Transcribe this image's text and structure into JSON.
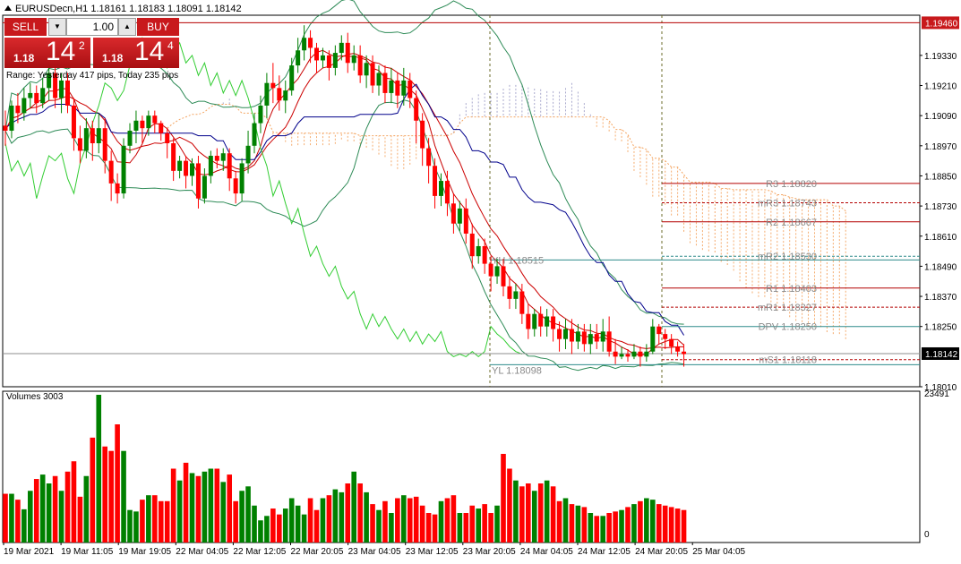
{
  "header": {
    "symbol_line": "EURUSDecn,H1  1.18161 1.18183 1.18091 1.18142",
    "range_text": "Range: Yesterday 417 pips, Today 235 pips"
  },
  "trade_panel": {
    "sell_label": "SELL",
    "buy_label": "BUY",
    "lot_value": "1.00",
    "bid": {
      "prefix": "1.18",
      "big": "14",
      "sup": "2"
    },
    "ask": {
      "prefix": "1.18",
      "big": "14",
      "sup": "4"
    }
  },
  "volumes_title": "Volumes 3003",
  "colors": {
    "bull": "#008000",
    "bear": "#ff0000",
    "ma_fast": "#c80000",
    "ma_mid": "#cc0000",
    "kijun": "#00008b",
    "bands": "#2e8b57",
    "chikou": "#32cd32",
    "cloud": "#f4a460",
    "cloud_top": "#a0a0c8",
    "pivot": "#b40000",
    "pivot_teal": "#2e8b8b",
    "badge_red": "#c8191c"
  },
  "chart_data": [
    {
      "type": "candlestick",
      "title": "EURUSDecn,H1",
      "ylim": [
        1.1801,
        1.1949
      ],
      "y_ticks": [
        "1.19460",
        "1.19330",
        "1.19210",
        "1.19090",
        "1.18970",
        "1.18850",
        "1.18730",
        "1.18610",
        "1.18490",
        "1.18370",
        "1.18250",
        "1.18142",
        "1.18010"
      ],
      "x_tick_labels": [
        "19 Mar 2021",
        "19 Mar 11:05",
        "19 Mar 19:05",
        "22 Mar 04:05",
        "22 Mar 12:05",
        "22 Mar 20:05",
        "23 Mar 04:05",
        "23 Mar 12:05",
        "23 Mar 20:05",
        "24 Mar 04:05",
        "24 Mar 12:05",
        "24 Mar 20:05",
        "25 Mar 04:05"
      ],
      "current_price": {
        "label": "1.18142",
        "value": 1.18142
      },
      "high_marker": {
        "label": "1.19460",
        "value": 1.1946
      },
      "candles": [
        [
          1.1905,
          1.1903,
          1.1911,
          1.1897
        ],
        [
          1.1903,
          1.1913,
          1.1915,
          1.19
        ],
        [
          1.1913,
          1.191,
          1.1918,
          1.1906
        ],
        [
          1.191,
          1.1916,
          1.192,
          1.1907
        ],
        [
          1.1916,
          1.1918,
          1.1922,
          1.1912
        ],
        [
          1.1918,
          1.1914,
          1.1921,
          1.191
        ],
        [
          1.1914,
          1.192,
          1.1924,
          1.1912
        ],
        [
          1.192,
          1.1926,
          1.1928,
          1.1915
        ],
        [
          1.1926,
          1.1916,
          1.193,
          1.1912
        ],
        [
          1.1916,
          1.1923,
          1.1926,
          1.191
        ],
        [
          1.1923,
          1.1913,
          1.1926,
          1.191
        ],
        [
          1.1913,
          1.19,
          1.1916,
          1.1895
        ],
        [
          1.19,
          1.1895,
          1.1905,
          1.189
        ],
        [
          1.1895,
          1.1904,
          1.1908,
          1.1892
        ],
        [
          1.1904,
          1.1898,
          1.1907,
          1.1891
        ],
        [
          1.1898,
          1.1904,
          1.191,
          1.1894
        ],
        [
          1.1904,
          1.1891,
          1.1908,
          1.1886
        ],
        [
          1.1891,
          1.1882,
          1.1895,
          1.1875
        ],
        [
          1.1882,
          1.1878,
          1.1886,
          1.1874
        ],
        [
          1.1878,
          1.1897,
          1.19,
          1.1876
        ],
        [
          1.1897,
          1.1903,
          1.1906,
          1.1894
        ],
        [
          1.1903,
          1.1907,
          1.1911,
          1.1898
        ],
        [
          1.1907,
          1.1904,
          1.1909,
          1.1898
        ],
        [
          1.1904,
          1.1909,
          1.1911,
          1.1901
        ],
        [
          1.1909,
          1.1906,
          1.1911,
          1.1902
        ],
        [
          1.1906,
          1.1902,
          1.1907,
          1.1899
        ],
        [
          1.1902,
          1.1898,
          1.1904,
          1.1892
        ],
        [
          1.1898,
          1.1887,
          1.19,
          1.1883
        ],
        [
          1.1887,
          1.1891,
          1.1893,
          1.1884
        ],
        [
          1.1891,
          1.1885,
          1.1893,
          1.188
        ],
        [
          1.1885,
          1.189,
          1.1892,
          1.1881
        ],
        [
          1.189,
          1.1876,
          1.1893,
          1.1872
        ],
        [
          1.1876,
          1.1885,
          1.1888,
          1.1874
        ],
        [
          1.1885,
          1.1893,
          1.1895,
          1.1882
        ],
        [
          1.1893,
          1.1891,
          1.1896,
          1.1888
        ],
        [
          1.1891,
          1.1894,
          1.1896,
          1.1887
        ],
        [
          1.1894,
          1.1884,
          1.1896,
          1.1879
        ],
        [
          1.1884,
          1.1878,
          1.1887,
          1.1874
        ],
        [
          1.1878,
          1.189,
          1.1892,
          1.1875
        ],
        [
          1.189,
          1.1897,
          1.1903,
          1.1886
        ],
        [
          1.1897,
          1.1906,
          1.191,
          1.1894
        ],
        [
          1.1906,
          1.1913,
          1.1917,
          1.1902
        ],
        [
          1.1913,
          1.1922,
          1.1926,
          1.1908
        ],
        [
          1.1922,
          1.192,
          1.193,
          1.1914
        ],
        [
          1.192,
          1.1915,
          1.1925,
          1.1911
        ],
        [
          1.1915,
          1.1919,
          1.1923,
          1.191
        ],
        [
          1.1919,
          1.1929,
          1.1932,
          1.1917
        ],
        [
          1.1929,
          1.1935,
          1.194,
          1.1926
        ],
        [
          1.1935,
          1.194,
          1.1945,
          1.1931
        ],
        [
          1.194,
          1.1936,
          1.1943,
          1.193
        ],
        [
          1.1936,
          1.1931,
          1.1938,
          1.1926
        ],
        [
          1.1931,
          1.1933,
          1.1936,
          1.1928
        ],
        [
          1.1933,
          1.1928,
          1.1935,
          1.1923
        ],
        [
          1.1928,
          1.1934,
          1.1937,
          1.1925
        ],
        [
          1.1934,
          1.1938,
          1.1941,
          1.1931
        ],
        [
          1.1938,
          1.193,
          1.1942,
          1.1926
        ],
        [
          1.193,
          1.1933,
          1.1937,
          1.1927
        ],
        [
          1.1933,
          1.1925,
          1.1937,
          1.1922
        ],
        [
          1.1925,
          1.193,
          1.1933,
          1.192
        ],
        [
          1.193,
          1.1921,
          1.1933,
          1.1918
        ],
        [
          1.1921,
          1.1926,
          1.1929,
          1.1917
        ],
        [
          1.1926,
          1.1918,
          1.1929,
          1.1914
        ],
        [
          1.1918,
          1.1923,
          1.1928,
          1.1914
        ],
        [
          1.1923,
          1.1917,
          1.1926,
          1.1912
        ],
        [
          1.1917,
          1.1923,
          1.1928,
          1.1913
        ],
        [
          1.1923,
          1.1916,
          1.1926,
          1.1912
        ],
        [
          1.1916,
          1.1907,
          1.1919,
          1.1898
        ],
        [
          1.1907,
          1.1896,
          1.191,
          1.1889
        ],
        [
          1.1896,
          1.1889,
          1.19,
          1.1882
        ],
        [
          1.1889,
          1.1877,
          1.1892,
          1.1872
        ],
        [
          1.1877,
          1.1883,
          1.1886,
          1.1873
        ],
        [
          1.1883,
          1.1874,
          1.1887,
          1.1869
        ],
        [
          1.1874,
          1.1866,
          1.1878,
          1.1862
        ],
        [
          1.1866,
          1.1872,
          1.1875,
          1.1863
        ],
        [
          1.1872,
          1.1862,
          1.1876,
          1.1858
        ],
        [
          1.1862,
          1.1853,
          1.1866,
          1.1848
        ],
        [
          1.1853,
          1.1857,
          1.186,
          1.185
        ],
        [
          1.1857,
          1.185,
          1.186,
          1.1846
        ],
        [
          1.185,
          1.1845,
          1.1853,
          1.1839
        ],
        [
          1.1845,
          1.1849,
          1.1852,
          1.1842
        ],
        [
          1.1849,
          1.1841,
          1.1852,
          1.1837
        ],
        [
          1.1841,
          1.1836,
          1.1845,
          1.1832
        ],
        [
          1.1836,
          1.1839,
          1.1842,
          1.1832
        ],
        [
          1.1839,
          1.183,
          1.1842,
          1.1826
        ],
        [
          1.183,
          1.1824,
          1.1834,
          1.182
        ],
        [
          1.1824,
          1.183,
          1.1832,
          1.1821
        ],
        [
          1.183,
          1.1825,
          1.1833,
          1.1821
        ],
        [
          1.1825,
          1.1829,
          1.1832,
          1.1821
        ],
        [
          1.1829,
          1.1824,
          1.1832,
          1.1819
        ],
        [
          1.1824,
          1.182,
          1.1827,
          1.1815
        ],
        [
          1.182,
          1.1824,
          1.1828,
          1.1816
        ],
        [
          1.1824,
          1.1819,
          1.1828,
          1.1814
        ],
        [
          1.1819,
          1.1823,
          1.1826,
          1.1816
        ],
        [
          1.1823,
          1.1818,
          1.1826,
          1.1815
        ],
        [
          1.1818,
          1.1822,
          1.1826,
          1.1814
        ],
        [
          1.1822,
          1.1819,
          1.1826,
          1.1816
        ],
        [
          1.1819,
          1.1823,
          1.1828,
          1.1815
        ],
        [
          1.1823,
          1.1815,
          1.1829,
          1.1813
        ],
        [
          1.1815,
          1.1813,
          1.182,
          1.181
        ],
        [
          1.1813,
          1.1814,
          1.1817,
          1.1812
        ],
        [
          1.1814,
          1.1813,
          1.1816,
          1.1811
        ],
        [
          1.1813,
          1.1815,
          1.1818,
          1.1812
        ],
        [
          1.1815,
          1.1813,
          1.1817,
          1.1809
        ],
        [
          1.1813,
          1.1815,
          1.1818,
          1.1811
        ],
        [
          1.1815,
          1.1825,
          1.1828,
          1.1814
        ],
        [
          1.1825,
          1.1822,
          1.1826,
          1.1818
        ],
        [
          1.1822,
          1.182,
          1.1824,
          1.1816
        ],
        [
          1.182,
          1.1817,
          1.1822,
          1.1814
        ],
        [
          1.1817,
          1.1815,
          1.1819,
          1.1813
        ],
        [
          1.1815,
          1.1814,
          1.1818,
          1.1809
        ]
      ],
      "volumes": [
        330,
        330,
        290,
        225,
        350,
        430,
        460,
        400,
        450,
        350,
        480,
        550,
        310,
        450,
        710,
        1000,
        650,
        620,
        800,
        620,
        220,
        210,
        290,
        320,
        320,
        280,
        280,
        500,
        420,
        540,
        470,
        450,
        480,
        500,
        500,
        410,
        460,
        280,
        350,
        380,
        250,
        150,
        180,
        230,
        190,
        230,
        300,
        250,
        190,
        300,
        220,
        300,
        320,
        360,
        340,
        400,
        480,
        400,
        340,
        260,
        220,
        280,
        200,
        300,
        320,
        300,
        310,
        250,
        200,
        190,
        280,
        300,
        320,
        200,
        200,
        250,
        230,
        260,
        200,
        250,
        600,
        500,
        420,
        380,
        400,
        350,
        400,
        420,
        380,
        280,
        300,
        260,
        250,
        240,
        200,
        180,
        180,
        200,
        210,
        220,
        240,
        260,
        280,
        300,
        290,
        260,
        250,
        240,
        230,
        220
      ]
    },
    {
      "type": "bar",
      "title": "Volumes 3003",
      "ylim": [
        0,
        23491
      ],
      "y_ticks": [
        "23491",
        "0"
      ]
    }
  ],
  "pivots": {
    "levels": [
      {
        "label": "R3 1.18820",
        "value": 1.1882,
        "style": "solid",
        "color": "pivot"
      },
      {
        "label": "mR3 1.18743",
        "value": 1.18743,
        "style": "dashed",
        "color": "pivot"
      },
      {
        "label": "R2 1.18667",
        "value": 1.18667,
        "style": "solid",
        "color": "pivot"
      },
      {
        "label": "mR2 1.18530",
        "value": 1.1853,
        "style": "dashed",
        "color": "pivot_teal"
      },
      {
        "label": "R1 1.18403",
        "value": 1.18403,
        "style": "solid",
        "color": "pivot"
      },
      {
        "label": "mR1 1.18327",
        "value": 1.18327,
        "style": "dashed",
        "color": "pivot"
      },
      {
        "label": "DPV 1.18250",
        "value": 1.1825,
        "style": "solid",
        "color": "pivot_teal"
      },
      {
        "label": "mS1 1.18118",
        "value": 1.18118,
        "style": "dashed",
        "color": "pivot"
      }
    ],
    "yh": {
      "label": "YH 1.18515",
      "value": 1.18515
    },
    "yl": {
      "label": "YL 1.18098",
      "value": 1.18098
    }
  }
}
